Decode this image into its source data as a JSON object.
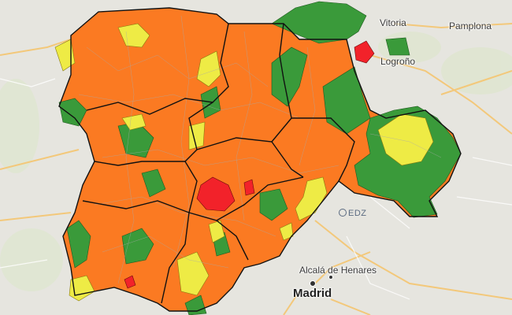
{
  "cities": [
    {
      "id": "vitoria",
      "label": "Vitoria"
    },
    {
      "id": "pamplona",
      "label": "Pamplona"
    },
    {
      "id": "logrono",
      "label": "Logroño"
    },
    {
      "id": "alcala",
      "label": "Alcalá de Henares"
    },
    {
      "id": "madrid",
      "label": "Madrid"
    }
  ],
  "watermark": "EDZ",
  "legend_colors": {
    "orange": "#fb7a22",
    "green": "#3a9a3a",
    "yellow": "#eeeb45",
    "red": "#f2222a",
    "background": "#e6e5df",
    "roads": "#f3c87a"
  }
}
